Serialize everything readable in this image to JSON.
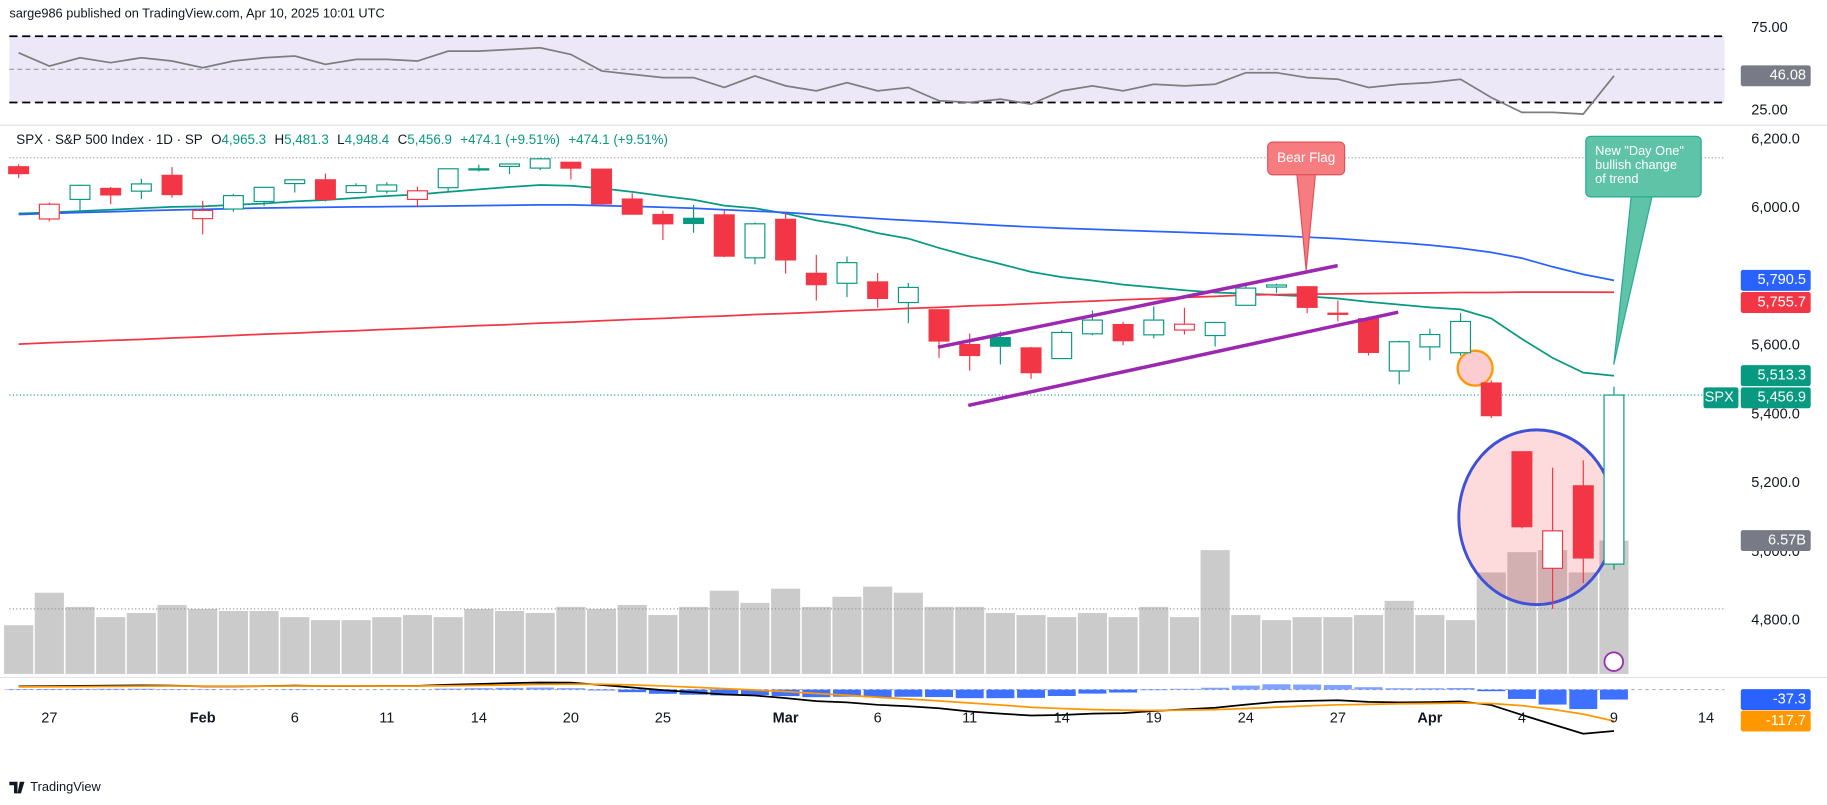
{
  "header": "sarge986 published on TradingView.com, Apr 10, 2025 10:01 UTC",
  "footer": "TradingView",
  "annotations": [
    {
      "text": "Bear Flag"
    },
    {
      "text_lines": [
        "New \"Day One\"",
        "bullish change",
        "of trend"
      ]
    }
  ],
  "chart_data": {
    "type": "candlestick",
    "legend": {
      "title": "SPX · S&P 500 Index · 1D · SP",
      "open_key": "O",
      "open": "4,965.3",
      "high_key": "H",
      "high": "5,481.3",
      "low_key": "L",
      "low": "4,948.4",
      "close_key": "C",
      "close": "5,456.9",
      "change": "+474.1 (+9.51%)",
      "change_2": "+474.1 (+9.51%)"
    },
    "x": [
      "2025-01-24",
      "2025-01-27",
      "2025-01-28",
      "2025-01-29",
      "2025-01-30",
      "2025-01-31",
      "2025-02-03",
      "2025-02-04",
      "2025-02-05",
      "2025-02-06",
      "2025-02-07",
      "2025-02-10",
      "2025-02-11",
      "2025-02-12",
      "2025-02-13",
      "2025-02-14",
      "2025-02-18",
      "2025-02-19",
      "2025-02-20",
      "2025-02-21",
      "2025-02-24",
      "2025-02-25",
      "2025-02-26",
      "2025-02-27",
      "2025-02-28",
      "2025-03-03",
      "2025-03-04",
      "2025-03-05",
      "2025-03-06",
      "2025-03-07",
      "2025-03-10",
      "2025-03-11",
      "2025-03-12",
      "2025-03-13",
      "2025-03-14",
      "2025-03-17",
      "2025-03-18",
      "2025-03-19",
      "2025-03-20",
      "2025-03-21",
      "2025-03-24",
      "2025-03-25",
      "2025-03-26",
      "2025-03-27",
      "2025-03-28",
      "2025-03-31",
      "2025-04-01",
      "2025-04-02",
      "2025-04-03",
      "2025-04-04",
      "2025-04-07",
      "2025-04-08",
      "2025-04-09"
    ],
    "xticks": [
      {
        "value": "2025-01-27",
        "label": "27"
      },
      {
        "value": "2025-02-03",
        "label": "Feb"
      },
      {
        "value": "2025-02-06",
        "label": "6"
      },
      {
        "value": "2025-02-11",
        "label": "11"
      },
      {
        "value": "2025-02-14",
        "label": "14"
      },
      {
        "value": "2025-02-20",
        "label": "20"
      },
      {
        "value": "2025-02-25",
        "label": "25"
      },
      {
        "value": "2025-03-03",
        "label": "Mar"
      },
      {
        "value": "2025-03-06",
        "label": "6"
      },
      {
        "value": "2025-03-11",
        "label": "11"
      },
      {
        "value": "2025-03-14",
        "label": "14"
      },
      {
        "value": "2025-03-19",
        "label": "19"
      },
      {
        "value": "2025-03-24",
        "label": "24"
      },
      {
        "value": "2025-03-27",
        "label": "27"
      },
      {
        "value": "2025-04-01",
        "label": "Apr"
      },
      {
        "value": "2025-04-04",
        "label": "4"
      },
      {
        "value": "2025-04-09",
        "label": "9"
      },
      {
        "value": "2025-04-14",
        "label": "14"
      }
    ],
    "open": [
      6121,
      5969,
      6026,
      6058,
      6050,
      6096,
      5970,
      5998,
      6020,
      6072,
      6083,
      6046,
      6050,
      6026,
      6060,
      6115,
      6122,
      6117,
      6134,
      6114,
      6027,
      5982,
      5971,
      5981,
      5856,
      5968,
      5811,
      5782,
      5786,
      5726,
      5705,
      5604,
      5624,
      5594,
      5563,
      5635,
      5662,
      5632,
      5646,
      5630,
      5718,
      5771,
      5772,
      5695,
      5679,
      5527,
      5597,
      5580,
      5492,
      5292,
      4953,
      5193,
      4965.3
    ],
    "high": [
      6128,
      6017,
      6069,
      6062,
      6086,
      6120,
      6022,
      6042,
      6062,
      6084,
      6101,
      6073,
      6076,
      6063,
      6116,
      6127,
      6129,
      6147,
      6134,
      6114,
      6044,
      5993,
      6010,
      5994,
      5959,
      5986,
      5865,
      5860,
      5812,
      5783,
      5705,
      5636,
      5642,
      5597,
      5645,
      5703,
      5670,
      5715,
      5711,
      5670,
      5775,
      5781,
      5772,
      5732,
      5685,
      5615,
      5650,
      5695,
      5500,
      5292,
      5246,
      5267,
      5481.3
    ],
    "low": [
      6088,
      5962,
      5994,
      6012,
      6027,
      6031,
      5924,
      5990,
      6007,
      6046,
      6020,
      6044,
      6043,
      6003,
      6048,
      6107,
      6100,
      6111,
      6084,
      6008,
      5982,
      5908,
      5929,
      5858,
      5837,
      5810,
      5732,
      5742,
      5711,
      5666,
      5565,
      5528,
      5546,
      5504,
      5563,
      5631,
      5602,
      5622,
      5633,
      5598,
      5718,
      5754,
      5695,
      5671,
      5572,
      5488,
      5558,
      5571,
      5390,
      5069,
      4835,
      4910,
      4948.4
    ],
    "close": [
      6101,
      6012,
      6067,
      6039,
      6071,
      6040,
      5994,
      6037,
      6061,
      6083,
      6026,
      6066,
      6068,
      6051,
      6115,
      6115,
      6129,
      6144,
      6117,
      6013,
      5983,
      5955,
      5956,
      5861,
      5955,
      5850,
      5778,
      5842,
      5738,
      5770,
      5614,
      5572,
      5599,
      5522,
      5639,
      5675,
      5615,
      5675,
      5663,
      5668,
      5768,
      5777,
      5712,
      5693,
      5581,
      5612,
      5633,
      5671,
      5397,
      5074,
      5062,
      4983,
      5456.9
    ],
    "colors": {
      "up": "#089981",
      "down": "#f23645"
    },
    "ylim": [
      4640,
      6240
    ],
    "yticks": [
      {
        "value": 4800,
        "label": "4,800.0"
      },
      {
        "value": 5000,
        "label": "5,000.0"
      },
      {
        "value": 5200,
        "label": "5,200.0"
      },
      {
        "value": 5400,
        "label": "5,400.0"
      },
      {
        "value": 5600,
        "label": "5,600.0"
      },
      {
        "value": 5800,
        "label": "5,800.0"
      },
      {
        "value": 6000,
        "label": "6,000.0"
      },
      {
        "value": 6200,
        "label": "6,200.0"
      }
    ],
    "symbol_label": "SPX",
    "last_price_label": "5,456.9",
    "lines": [
      {
        "color": "#089981",
        "values": [
          5985,
          5988,
          5992,
          5996,
          6000,
          6004,
          6006,
          6010,
          6014,
          6020,
          6024,
          6030,
          6036,
          6040,
          6048,
          6055,
          6062,
          6068,
          6066,
          6058,
          6048,
          6036,
          6025,
          6008,
          6000,
          5985,
          5965,
          5950,
          5928,
          5912,
          5885,
          5860,
          5838,
          5815,
          5800,
          5790,
          5778,
          5770,
          5762,
          5755,
          5752,
          5748,
          5744,
          5738,
          5728,
          5720,
          5712,
          5706,
          5680,
          5620,
          5565,
          5522,
          5513.3
        ],
        "last_label": "5,513.3"
      },
      {
        "color": "#2962ff",
        "values": [
          5982,
          5985,
          5988,
          5990,
          5993,
          5995,
          5997,
          5999,
          6001,
          6002,
          6003,
          6004,
          6005,
          6006,
          6007,
          6008,
          6009,
          6010,
          6010,
          6008,
          6006,
          6003,
          6000,
          5996,
          5992,
          5988,
          5982,
          5976,
          5970,
          5965,
          5960,
          5955,
          5950,
          5946,
          5942,
          5939,
          5936,
          5933,
          5930,
          5927,
          5924,
          5920,
          5916,
          5912,
          5906,
          5900,
          5893,
          5884,
          5872,
          5855,
          5830,
          5808,
          5790.5
        ],
        "last_label": "5,790.5"
      },
      {
        "color": "#f23645",
        "values": [
          5605,
          5609,
          5612,
          5616,
          5619,
          5623,
          5626,
          5630,
          5634,
          5637,
          5641,
          5644,
          5648,
          5651,
          5655,
          5659,
          5662,
          5666,
          5669,
          5673,
          5677,
          5680,
          5684,
          5687,
          5691,
          5694,
          5698,
          5702,
          5705,
          5709,
          5712,
          5716,
          5719,
          5723,
          5727,
          5730,
          5734,
          5737,
          5741,
          5744,
          5748,
          5749,
          5750,
          5751,
          5752,
          5753,
          5754,
          5755,
          5755,
          5756,
          5756,
          5756,
          5755.7
        ],
        "last_label": "5,755.7"
      }
    ],
    "volume": {
      "color": "#cbcbcb",
      "ylim": [
        0,
        27
      ],
      "values": [
        2.4,
        4.0,
        3.3,
        2.8,
        3.0,
        3.4,
        3.2,
        3.1,
        3.1,
        2.8,
        2.65,
        2.65,
        2.8,
        2.9,
        2.8,
        3.2,
        3.1,
        3.0,
        3.3,
        3.2,
        3.4,
        2.9,
        3.3,
        4.1,
        3.5,
        4.2,
        3.3,
        3.8,
        4.3,
        4.0,
        3.3,
        3.3,
        3.0,
        2.9,
        2.8,
        3.0,
        2.8,
        3.3,
        2.8,
        6.1,
        2.9,
        2.65,
        2.8,
        2.8,
        2.9,
        3.6,
        2.9,
        2.65,
        5.0,
        6.0,
        6.1,
        5.0,
        6.57
      ],
      "last_label": "6.57B"
    },
    "rsi": {
      "color": "#7e7e7e",
      "ylim": [
        18.7,
        77.8
      ],
      "yticks": [
        {
          "value": 75,
          "label": "75.00"
        },
        {
          "value": 25,
          "label": "25.00"
        }
      ],
      "levels": [
        70,
        50,
        30
      ],
      "band": [
        30,
        70
      ],
      "band_color": "#ece8f7",
      "values": [
        60,
        52,
        57,
        54,
        57,
        55,
        51,
        55,
        57,
        58,
        53,
        56,
        56,
        55,
        61,
        61,
        62,
        63,
        59,
        49,
        47,
        45,
        45,
        39,
        46,
        40,
        37,
        42,
        37,
        39,
        31,
        30,
        32,
        29,
        37,
        40,
        37,
        41,
        40,
        41,
        48,
        48,
        45,
        44,
        39,
        41,
        42,
        44,
        33,
        24,
        24,
        23,
        46.08
      ],
      "last_label": "46.08"
    },
    "macd": {
      "ylim": [
        -275,
        39
      ],
      "histogram": {
        "color": "#2962ff",
        "values": [
          2,
          2.4,
          2.7,
          3,
          3.2,
          1.8,
          -1,
          -0.8,
          0.1,
          1.7,
          -0.2,
          -0.2,
          0.6,
          0.5,
          3.6,
          5.3,
          6.6,
          7.7,
          5.3,
          -3,
          -9.6,
          -15.7,
          -19,
          -21.6,
          -20.5,
          -24.4,
          -28.3,
          -26.6,
          -28.5,
          -26.8,
          -28,
          -32,
          -32,
          -31,
          -24,
          -15,
          -11,
          -2,
          3,
          7,
          15,
          20,
          19,
          17,
          9,
          5,
          5,
          6,
          -6,
          -35,
          -56,
          -73,
          -37.3
        ],
        "last_label": "-37.3"
      },
      "macd": {
        "color": "#000000",
        "values": [
          12,
          13,
          14,
          15,
          16,
          15,
          12,
          12,
          13,
          15,
          13,
          13,
          14,
          14,
          18,
          21,
          24,
          27,
          26,
          17,
          8,
          -2,
          -10,
          -18,
          -22,
          -32,
          -43,
          -48,
          -57,
          -62,
          -70,
          -82,
          -90,
          -97,
          -95,
          -90,
          -88,
          -80,
          -74,
          -68,
          -56,
          -46,
          -42,
          -40,
          -46,
          -48,
          -47,
          -44,
          -58,
          -95,
          -130,
          -165,
          -155
        ]
      },
      "signal": {
        "color": "#ff9800",
        "values": [
          10,
          10.6,
          11.3,
          12,
          12.8,
          13.2,
          13,
          12.8,
          12.9,
          13.3,
          13.2,
          13.2,
          13.4,
          13.5,
          14.4,
          15.7,
          17.4,
          19.3,
          20.7,
          20,
          17.6,
          13.7,
          9,
          3.6,
          -1.5,
          -7.6,
          -14.7,
          -21.4,
          -28.5,
          -35.2,
          -42,
          -50,
          -58,
          -66,
          -71,
          -75,
          -77,
          -78,
          -77,
          -75,
          -71,
          -66,
          -61,
          -57,
          -55,
          -53,
          -52,
          -50,
          -52,
          -60,
          -74,
          -92,
          -117.7
        ],
        "last_label": "-117.7"
      }
    }
  }
}
